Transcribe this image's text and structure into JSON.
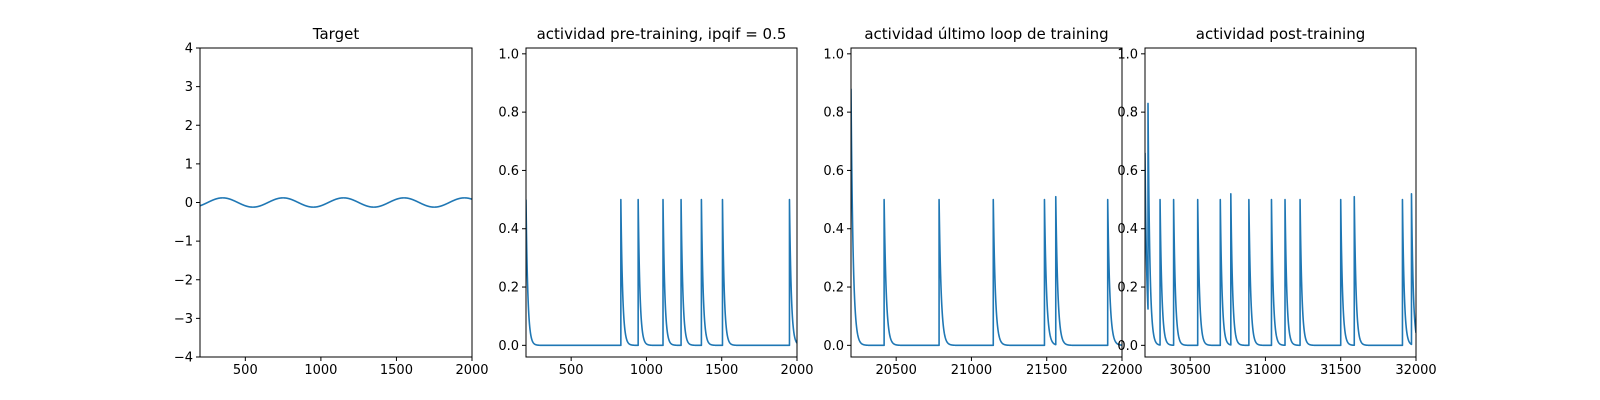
{
  "chart_data": [
    {
      "type": "line",
      "title": "Target",
      "xlim": [
        200,
        2000
      ],
      "ylim": [
        -4,
        4
      ],
      "xticks": [
        500,
        1000,
        1500,
        2000
      ],
      "yticks": [
        -4,
        -3,
        -2,
        -1,
        0,
        1,
        2,
        3,
        4
      ],
      "series": [
        {
          "color": "#1f77b4",
          "kind": "sine",
          "amplitude": 0.12,
          "period": 400,
          "peak_x": 350,
          "x_range": [
            200,
            2000
          ]
        }
      ]
    },
    {
      "type": "line",
      "title": "actividad pre-training, ipqif = 0.5",
      "xlim": [
        200,
        2000
      ],
      "ylim": [
        -0.04,
        1.02
      ],
      "xticks": [
        500,
        1000,
        1500,
        2000
      ],
      "yticks": [
        0.0,
        0.2,
        0.4,
        0.6,
        0.8,
        1.0
      ],
      "series": [
        {
          "color": "#1f77b4",
          "kind": "spike_train",
          "x_range": [
            200,
            2000
          ],
          "start_value": 0.5,
          "decay_constant": 12,
          "spikes": [
            [
              830,
              0.5
            ],
            [
              945,
              0.5
            ],
            [
              1110,
              0.5
            ],
            [
              1230,
              0.5
            ],
            [
              1365,
              0.5
            ],
            [
              1505,
              0.5
            ],
            [
              1950,
              0.5
            ]
          ]
        }
      ]
    },
    {
      "type": "line",
      "title": "actividad último loop de training",
      "xlim": [
        20200,
        22000
      ],
      "ylim": [
        -0.04,
        1.02
      ],
      "xticks": [
        20500,
        21000,
        21500,
        22000
      ],
      "yticks": [
        0.0,
        0.2,
        0.4,
        0.6,
        0.8,
        1.0
      ],
      "series": [
        {
          "color": "#1f77b4",
          "kind": "spike_train",
          "x_range": [
            20200,
            22000
          ],
          "start_value": 0.88,
          "decay_constant": 14,
          "spikes": [
            [
              20420,
              0.5
            ],
            [
              20785,
              0.5
            ],
            [
              21145,
              0.5
            ],
            [
              21485,
              0.5
            ],
            [
              21560,
              0.51
            ],
            [
              21905,
              0.5
            ]
          ]
        }
      ]
    },
    {
      "type": "line",
      "title": "actividad post-training",
      "xlim": [
        30200,
        32000
      ],
      "ylim": [
        -0.04,
        1.02
      ],
      "xticks": [
        30500,
        31000,
        31500,
        32000
      ],
      "yticks": [
        0.0,
        0.2,
        0.4,
        0.6,
        0.8,
        1.0
      ],
      "series": [
        {
          "color": "#1f77b4",
          "kind": "spike_train",
          "x_range": [
            30200,
            32000
          ],
          "start_value": 0.66,
          "decay_constant": 12,
          "spikes": [
            [
              30220,
              0.83
            ],
            [
              30300,
              0.5
            ],
            [
              30390,
              0.5
            ],
            [
              30550,
              0.5
            ],
            [
              30700,
              0.5
            ],
            [
              30770,
              0.52
            ],
            [
              30890,
              0.5
            ],
            [
              31040,
              0.5
            ],
            [
              31130,
              0.5
            ],
            [
              31230,
              0.5
            ],
            [
              31500,
              0.5
            ],
            [
              31590,
              0.51
            ],
            [
              31910,
              0.5
            ],
            [
              31970,
              0.52
            ]
          ]
        }
      ]
    }
  ]
}
